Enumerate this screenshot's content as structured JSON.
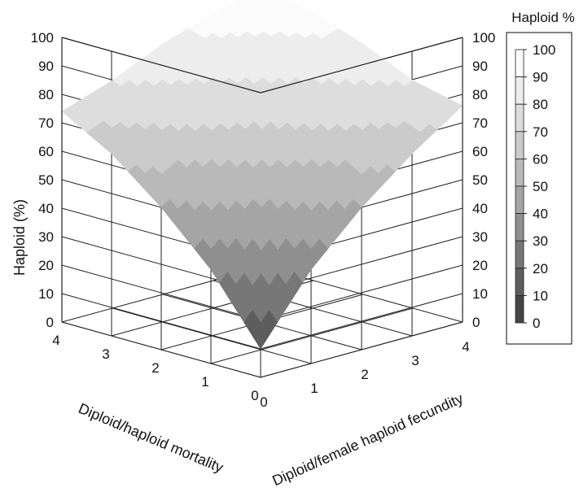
{
  "chart_data": {
    "type": "surface3d",
    "title": "",
    "zlabel": "Haploid (%)",
    "xlabel": "Diploid/female haploid fecundity",
    "ylabel": "Diploid/haploid mortality",
    "x_ticks": [
      "0",
      "1",
      "2",
      "3",
      "4"
    ],
    "y_ticks": [
      "0",
      "1",
      "2",
      "3",
      "4"
    ],
    "z_ticks": [
      "0",
      "10",
      "20",
      "30",
      "40",
      "50",
      "60",
      "70",
      "80",
      "90",
      "100"
    ],
    "xlim": [
      0,
      4
    ],
    "ylim": [
      0,
      4
    ],
    "zlim": [
      0,
      100
    ],
    "grid": true,
    "x": [
      0,
      1,
      2,
      3,
      4
    ],
    "y": [
      0,
      1,
      2,
      3,
      4
    ],
    "z": [
      [
        10,
        33,
        50,
        64,
        76
      ],
      [
        33,
        50,
        62,
        72,
        80
      ],
      [
        50,
        62,
        73,
        81,
        88
      ],
      [
        64,
        72,
        81,
        89,
        94
      ],
      [
        74,
        80,
        88,
        94,
        98
      ]
    ],
    "colorbar": {
      "title": "Haploid %",
      "ticks": [
        "100",
        "90",
        "80",
        "70",
        "60",
        "50",
        "40",
        "30",
        "20",
        "10",
        "0"
      ],
      "colors": [
        "#fbfbfb",
        "#ededed",
        "#dddddd",
        "#cbcbcb",
        "#b9b9b9",
        "#a5a5a5",
        "#8f8f8f",
        "#777777",
        "#5d5d5d",
        "#454545"
      ]
    }
  }
}
